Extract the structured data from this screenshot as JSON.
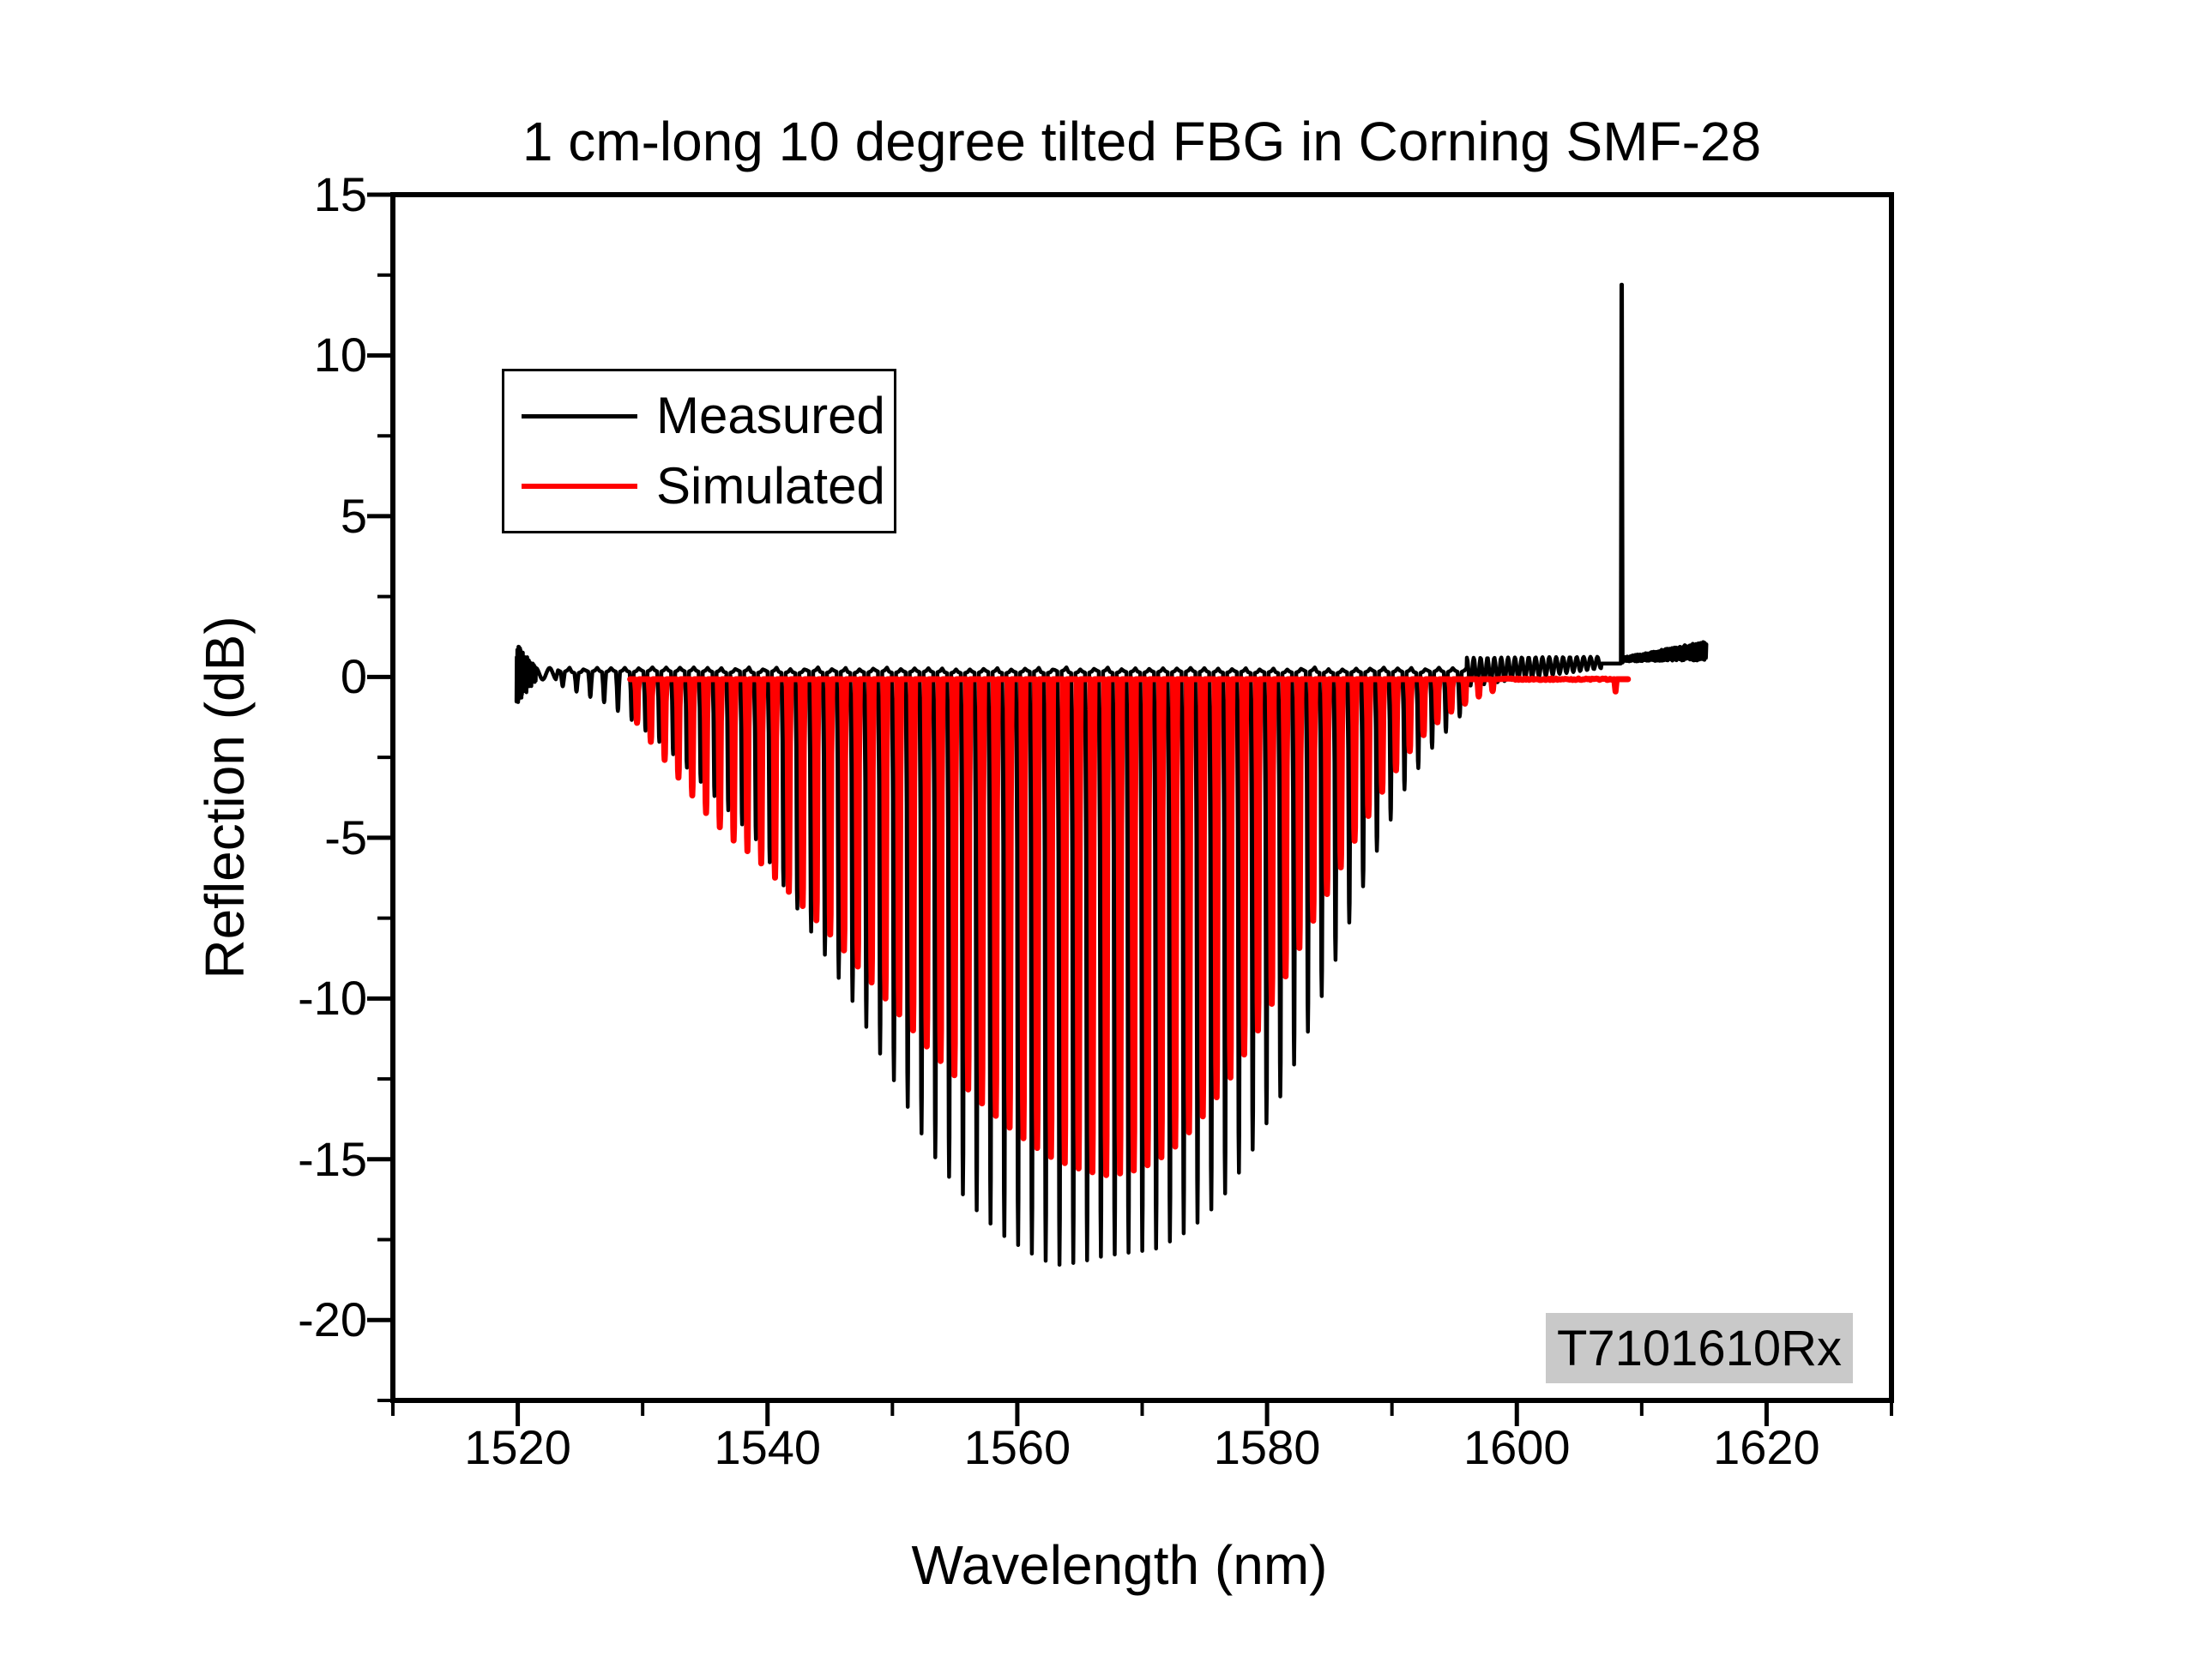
{
  "chart_data": {
    "type": "line",
    "title": "1 cm-long 10 degree tilted FBG in Corning SMF-28",
    "xlabel": "Wavelength (nm)",
    "ylabel": "Reflection (dB)",
    "annotation": "T7101610Rx",
    "annotation_bg": "#c9c9c9",
    "axis_color": "#000000",
    "x_range": [
      1510,
      1630
    ],
    "y_range": [
      -22.5,
      15
    ],
    "x_major_ticks": [
      1520,
      1540,
      1560,
      1580,
      1600,
      1620
    ],
    "x_minor_ticks": [
      1510,
      1530,
      1550,
      1570,
      1590,
      1610,
      1630
    ],
    "y_major_ticks": [
      15,
      10,
      5,
      0,
      -5,
      -10,
      -15,
      -20
    ],
    "y_minor_ticks": [
      12.5,
      7.5,
      2.5,
      -2.5,
      -7.5,
      -12.5,
      -17.5,
      -22.5
    ],
    "grid": false,
    "legend_position": "upper-left-inside",
    "comb": {
      "spacing_nm": 1.105
    },
    "series": [
      {
        "name": "Measured",
        "color": "#000000",
        "stroke_width": 4.5,
        "data_start_nm": 1519.9,
        "data_end_nm": 1615.2,
        "noise_burst": {
          "start": 1519.9,
          "end": 1521.45,
          "step": 0.022,
          "center": 0.1,
          "amp_start": 0.95,
          "amp_end": 0.22
        },
        "lead_ripple": {
          "start": 1521.45,
          "end": 1523.1,
          "center": 0.1,
          "amp": 0.18,
          "period": 1.1
        },
        "comb": {
          "start": 1523.6,
          "end": 1595.95,
          "top_db": 0.15,
          "top_wobble": 0.07
        },
        "envelope": [
          [
            1523,
            -0.2
          ],
          [
            1525,
            -0.5
          ],
          [
            1527,
            -0.8
          ],
          [
            1529,
            -1.3
          ],
          [
            1531,
            -1.9
          ],
          [
            1533,
            -2.6
          ],
          [
            1535,
            -3.4
          ],
          [
            1537,
            -4.2
          ],
          [
            1539,
            -5.0
          ],
          [
            1541,
            -6.3
          ],
          [
            1543,
            -7.6
          ],
          [
            1545,
            -8.9
          ],
          [
            1547,
            -10.2
          ],
          [
            1549,
            -11.7
          ],
          [
            1551,
            -13.2
          ],
          [
            1553,
            -14.7
          ],
          [
            1555,
            -15.8
          ],
          [
            1557,
            -16.7
          ],
          [
            1559,
            -17.4
          ],
          [
            1561,
            -17.9
          ],
          [
            1563,
            -18.3
          ],
          [
            1565,
            -18.2
          ],
          [
            1567,
            -18.0
          ],
          [
            1569,
            -17.9
          ],
          [
            1571,
            -17.8
          ],
          [
            1573,
            -17.4
          ],
          [
            1575,
            -16.8
          ],
          [
            1577,
            -15.9
          ],
          [
            1579,
            -14.6
          ],
          [
            1581,
            -13.1
          ],
          [
            1583,
            -11.3
          ],
          [
            1585,
            -9.3
          ],
          [
            1587,
            -7.2
          ],
          [
            1589,
            -5.2
          ],
          [
            1591,
            -3.5
          ],
          [
            1593,
            -2.3
          ],
          [
            1595,
            -1.4
          ],
          [
            1596,
            -1.0
          ]
        ],
        "post_ripple": {
          "start": 1596.0,
          "end": 1606.75,
          "center_start": 0.15,
          "center_end": 0.45,
          "amp_start": 0.45,
          "amp_end": 0.18,
          "period": 0.55
        },
        "plateau": {
          "start": 1606.8,
          "level": 0.42
        },
        "spike": {
          "wavelength": 1608.4,
          "peak_db": 12.2,
          "base_db": 0.45,
          "half_width_nm": 0.07
        },
        "tail": {
          "start": 1608.55,
          "end": 1615.2,
          "center_start": 0.55,
          "center_end": 0.82,
          "amp_start": 0.07,
          "amp_end": 0.3,
          "step": 0.032
        }
      },
      {
        "name": "Simulated",
        "color": "#ff0000",
        "stroke_width": 7,
        "data_start_nm": 1529.0,
        "data_end_nm": 1608.9,
        "comb": {
          "start": 1529.55,
          "end": 1598.95,
          "top_db": -0.07,
          "top_wobble": 0.0
        },
        "envelope": [
          [
            1529.5,
            -1.4
          ],
          [
            1531,
            -2.2
          ],
          [
            1533,
            -3.2
          ],
          [
            1535,
            -4.2
          ],
          [
            1537,
            -5.0
          ],
          [
            1539,
            -5.6
          ],
          [
            1541,
            -6.4
          ],
          [
            1543,
            -7.2
          ],
          [
            1545,
            -8.0
          ],
          [
            1547,
            -8.9
          ],
          [
            1549,
            -9.8
          ],
          [
            1551,
            -10.7
          ],
          [
            1553,
            -11.6
          ],
          [
            1555,
            -12.4
          ],
          [
            1557,
            -13.2
          ],
          [
            1559,
            -13.9
          ],
          [
            1561,
            -14.5
          ],
          [
            1563,
            -15.0
          ],
          [
            1565,
            -15.3
          ],
          [
            1567,
            -15.5
          ],
          [
            1569,
            -15.4
          ],
          [
            1571,
            -15.1
          ],
          [
            1573,
            -14.5
          ],
          [
            1575,
            -13.6
          ],
          [
            1577,
            -12.5
          ],
          [
            1579,
            -11.2
          ],
          [
            1581,
            -9.7
          ],
          [
            1583,
            -8.1
          ],
          [
            1585,
            -6.6
          ],
          [
            1587,
            -5.1
          ],
          [
            1589,
            -3.7
          ],
          [
            1591,
            -2.5
          ],
          [
            1593,
            -1.6
          ],
          [
            1595,
            -1.0
          ],
          [
            1597,
            -0.6
          ],
          [
            1599,
            -0.3
          ]
        ],
        "flat": {
          "start": 1599.3,
          "end": 1607.6,
          "level": -0.07,
          "jitter": 0.05
        },
        "end_dip": {
          "wavelength": 1607.9,
          "depth_db": -0.45
        }
      }
    ]
  }
}
